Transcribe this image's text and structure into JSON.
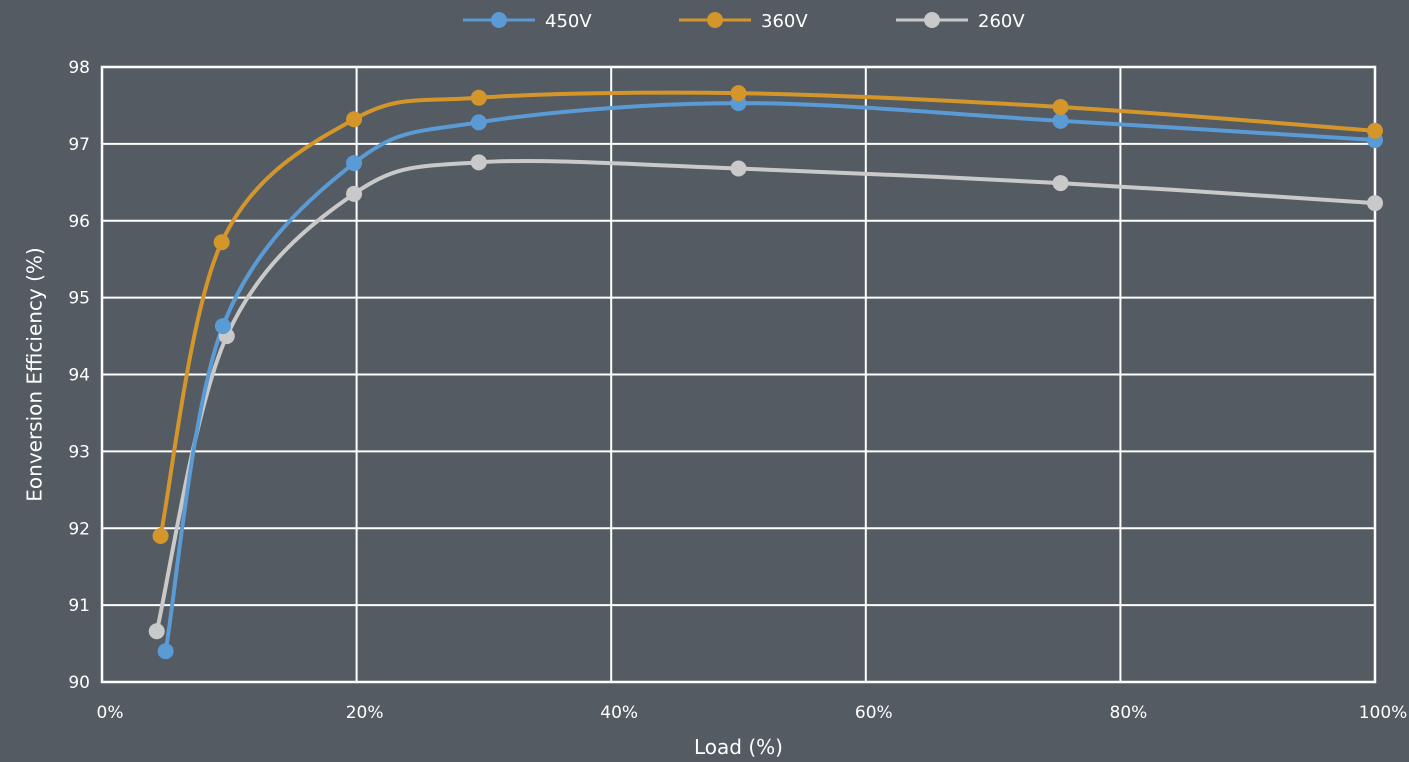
{
  "chart_data": {
    "type": "line",
    "smooth": true,
    "xlabel": "Load (%)",
    "ylabel": "Eonversion Efficiency (%)",
    "xlim": [
      0,
      100
    ],
    "ylim": [
      90,
      98
    ],
    "x_ticks": [
      "0%",
      "20%",
      "40%",
      "60%",
      "80%",
      "100%"
    ],
    "y_ticks": [
      "90",
      "91",
      "92",
      "93",
      "94",
      "95",
      "96",
      "97",
      "98"
    ],
    "grid": true,
    "legend_position": "top-center",
    "series": [
      {
        "name": "450V",
        "color": "#5b9bd5",
        "points": [
          [
            5,
            90.4
          ],
          [
            9.5,
            94.63
          ],
          [
            19.8,
            96.75
          ],
          [
            29.6,
            97.28
          ],
          [
            50,
            97.53
          ],
          [
            75.3,
            97.3
          ],
          [
            100,
            97.05
          ]
        ]
      },
      {
        "name": "360V",
        "color": "#d4962a",
        "points": [
          [
            4.6,
            91.9
          ],
          [
            9.4,
            95.72
          ],
          [
            19.8,
            97.32
          ],
          [
            29.6,
            97.6
          ],
          [
            50,
            97.66
          ],
          [
            75.3,
            97.48
          ],
          [
            100,
            97.17
          ]
        ]
      },
      {
        "name": "260V",
        "color": "#c9c9c9",
        "points": [
          [
            4.3,
            90.66
          ],
          [
            9.8,
            94.5
          ],
          [
            19.8,
            96.35
          ],
          [
            29.6,
            96.76
          ],
          [
            50,
            96.68
          ],
          [
            75.3,
            96.49
          ],
          [
            100,
            96.23
          ]
        ]
      }
    ]
  }
}
